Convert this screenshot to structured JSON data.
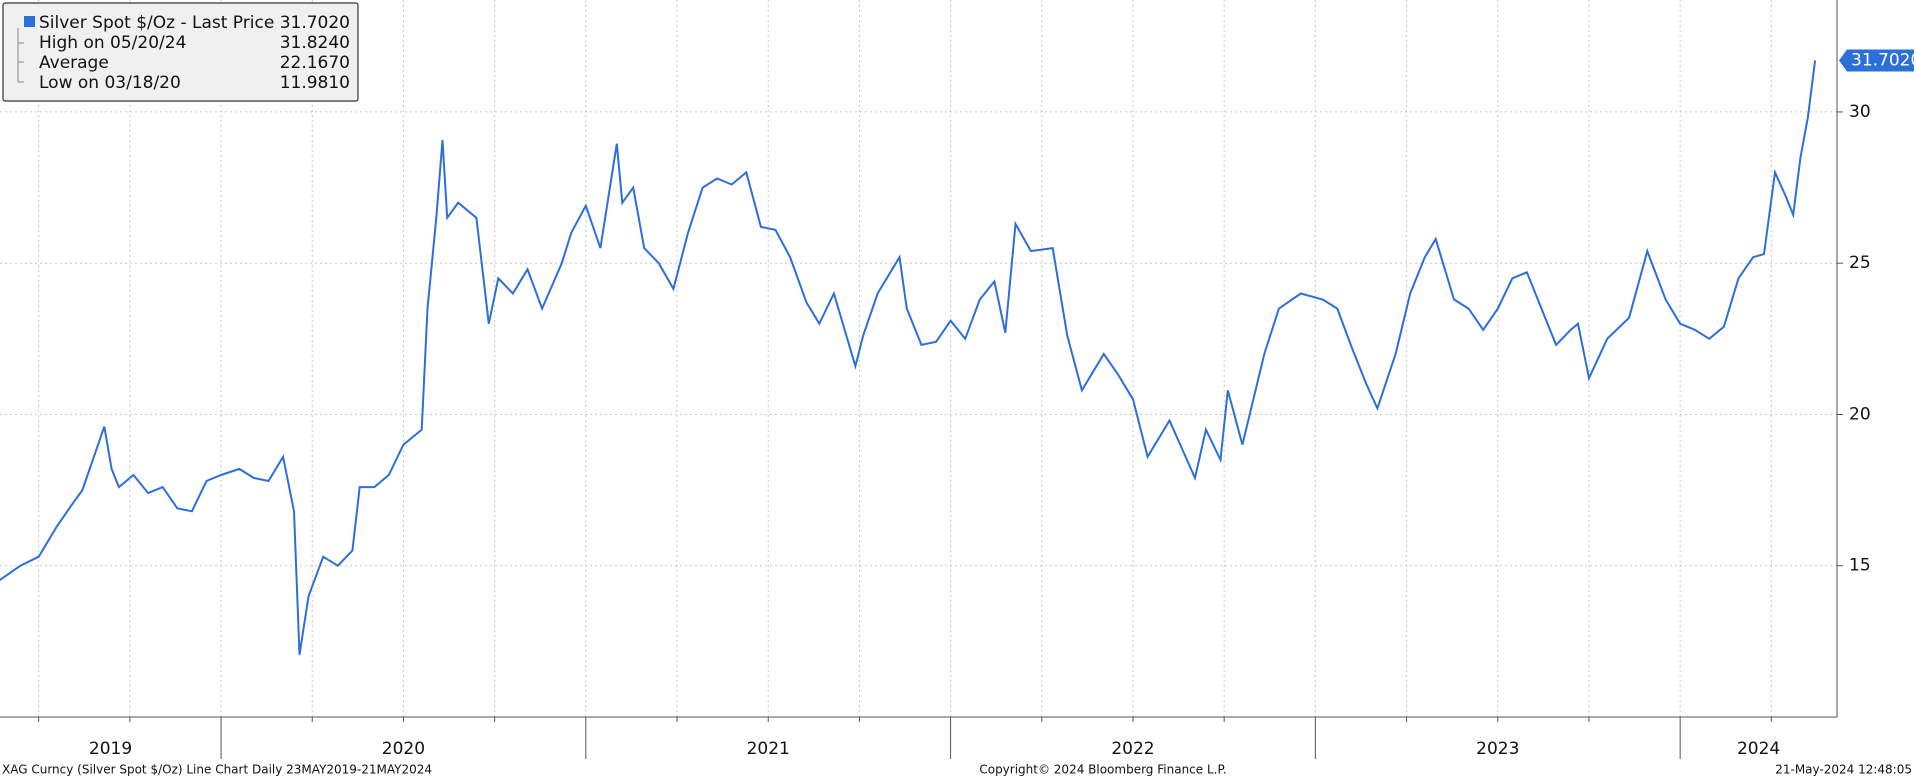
{
  "chart_data": {
    "type": "line",
    "x": [
      2019.39,
      2019.45,
      2019.5,
      2019.55,
      2019.59,
      2019.62,
      2019.68,
      2019.7,
      2019.72,
      2019.76,
      2019.8,
      2019.84,
      2019.88,
      2019.92,
      2019.96,
      2020.0,
      2020.05,
      2020.09,
      2020.13,
      2020.17,
      2020.2,
      2020.215,
      2020.24,
      2020.28,
      2020.32,
      2020.36,
      2020.38,
      2020.42,
      2020.46,
      2020.5,
      2020.55,
      2020.566,
      2020.59,
      2020.607,
      2020.62,
      2020.65,
      2020.7,
      2020.734,
      2020.76,
      2020.8,
      2020.84,
      2020.88,
      2020.934,
      2020.96,
      2021.0,
      2021.04,
      2021.085,
      2021.1,
      2021.13,
      2021.16,
      2021.2,
      2021.24,
      2021.28,
      2021.32,
      2021.36,
      2021.4,
      2021.44,
      2021.48,
      2021.52,
      2021.56,
      2021.605,
      2021.64,
      2021.68,
      2021.739,
      2021.76,
      2021.8,
      2021.86,
      2021.88,
      2021.92,
      2021.96,
      2022.0,
      2022.04,
      2022.08,
      2022.12,
      2022.15,
      2022.178,
      2022.22,
      2022.28,
      2022.32,
      2022.36,
      2022.42,
      2022.46,
      2022.5,
      2022.54,
      2022.6,
      2022.67,
      2022.7,
      2022.74,
      2022.76,
      2022.8,
      2022.86,
      2022.9,
      2022.96,
      2023.02,
      2023.06,
      2023.1,
      2023.14,
      2023.17,
      2023.22,
      2023.26,
      2023.3,
      2023.33,
      2023.38,
      2023.42,
      2023.46,
      2023.5,
      2023.54,
      2023.58,
      2023.62,
      2023.66,
      2023.7,
      2023.72,
      2023.75,
      2023.8,
      2023.86,
      2023.91,
      2023.96,
      2024.0,
      2024.04,
      2024.08,
      2024.12,
      2024.16,
      2024.2,
      2024.23,
      2024.26,
      2024.29,
      2024.31,
      2024.33,
      2024.35,
      2024.37
    ],
    "series": [
      {
        "name": "Silver Spot $/Oz - Last Price",
        "color": "#2d6fd8",
        "values": [
          14.5,
          15.0,
          15.3,
          16.3,
          17.0,
          17.5,
          19.6,
          18.2,
          17.6,
          18.0,
          17.4,
          17.6,
          16.9,
          16.8,
          17.8,
          18.0,
          18.2,
          17.9,
          17.8,
          18.6,
          16.8,
          12.06,
          14.0,
          15.3,
          15.0,
          15.5,
          17.6,
          17.6,
          18.0,
          19.0,
          19.5,
          23.5,
          26.5,
          29.07,
          26.5,
          27.0,
          26.5,
          23.0,
          24.5,
          24.0,
          24.8,
          23.5,
          25.0,
          26.0,
          26.9,
          25.5,
          28.95,
          27.0,
          27.5,
          25.5,
          25.0,
          24.15,
          26.0,
          27.5,
          27.8,
          27.6,
          28.0,
          26.2,
          26.1,
          25.2,
          23.7,
          23.0,
          24.0,
          21.6,
          22.6,
          24.0,
          25.2,
          23.5,
          22.3,
          22.4,
          23.1,
          22.5,
          23.8,
          24.4,
          22.7,
          26.3,
          25.4,
          25.5,
          22.6,
          20.8,
          22.0,
          21.3,
          20.5,
          18.6,
          19.8,
          17.9,
          19.5,
          18.5,
          20.8,
          19.0,
          22.0,
          23.5,
          24.0,
          23.8,
          23.5,
          22.2,
          21.0,
          20.2,
          22.0,
          24.0,
          25.2,
          25.8,
          23.8,
          23.5,
          22.8,
          23.5,
          24.5,
          24.7,
          23.5,
          22.3,
          22.8,
          23.0,
          21.2,
          22.5,
          23.2,
          25.4,
          23.8,
          23.0,
          22.8,
          22.5,
          22.9,
          24.5,
          25.2,
          25.3,
          28.0,
          27.2,
          26.6,
          28.5,
          29.8,
          31.702
        ]
      }
    ],
    "xlim": [
      2019.394,
      2024.43
    ],
    "xticks": [
      {
        "value": 2019.697,
        "label": "2019"
      },
      {
        "value": 2020.5,
        "label": "2020"
      },
      {
        "value": 2021.5,
        "label": "2021"
      },
      {
        "value": 2022.5,
        "label": "2022"
      },
      {
        "value": 2023.5,
        "label": "2023"
      },
      {
        "value": 2024.215,
        "label": "2024"
      }
    ],
    "x_separators": [
      2020,
      2021,
      2022,
      2023,
      2024
    ],
    "x_grid": [
      2019.5,
      2019.75,
      2020.25,
      2020.5,
      2020.75,
      2021.25,
      2021.5,
      2021.75,
      2022.25,
      2022.5,
      2022.75,
      2023.25,
      2023.5,
      2023.75,
      2024.25
    ],
    "ylim": [
      10,
      33.7
    ],
    "yticks": [
      15,
      20,
      25,
      30
    ],
    "grid": true,
    "last_price": {
      "value": 31.702,
      "label": "31.7020"
    },
    "stats": [
      {
        "name": "High on 05/20/24",
        "value": 31.824,
        "label": "31.8240"
      },
      {
        "name": "Average",
        "value": 22.167,
        "label": "22.1670"
      },
      {
        "name": "Low on 03/18/20",
        "value": 11.981,
        "label": "11.9810"
      }
    ],
    "footer": {
      "left": "XAG Curncy (Silver Spot  $/Oz) Line Chart  Daily 23MAY2019-21MAY2024",
      "center": "Copyright© 2024 Bloomberg Finance L.P.",
      "right": "21-May-2024 12:48:05"
    }
  }
}
